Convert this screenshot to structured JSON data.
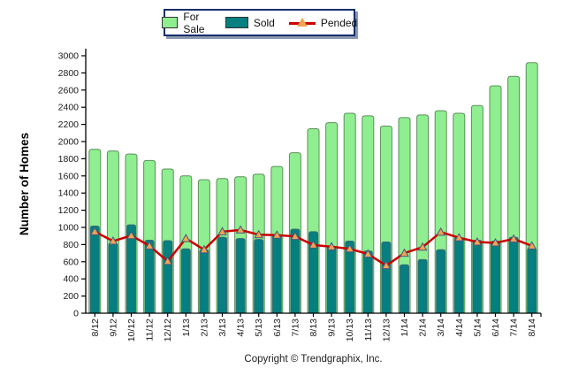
{
  "page": {
    "background": "#ffffff"
  },
  "footer": {
    "copyright": "Copyright © Trendgraphix, Inc."
  },
  "chart_data": {
    "type": "bar+line combo",
    "title": "",
    "ylabel": "Number of Homes",
    "xlabel": "",
    "ylim": [
      0,
      3000
    ],
    "ytick_step": 200,
    "grid": false,
    "legend_position": "top-center",
    "categories": [
      "8/12",
      "9/12",
      "10/12",
      "11/12",
      "12/12",
      "1/13",
      "2/13",
      "3/13",
      "4/13",
      "5/13",
      "6/13",
      "7/13",
      "8/13",
      "9/13",
      "10/13",
      "11/13",
      "12/13",
      "1/14",
      "2/14",
      "3/14",
      "4/14",
      "5/14",
      "6/14",
      "7/14",
      "8/14"
    ],
    "series": [
      {
        "name": "For Sale",
        "type": "bar",
        "color": "#8fee8f",
        "edge_color": "#5e8f5e",
        "values": [
          1910,
          1890,
          1855,
          1780,
          1680,
          1600,
          1555,
          1570,
          1590,
          1620,
          1710,
          1870,
          2150,
          2220,
          2330,
          2300,
          2180,
          2280,
          2310,
          2360,
          2330,
          2420,
          2650,
          2760,
          2920
        ]
      },
      {
        "name": "Sold",
        "type": "bar",
        "color": "#057f7f",
        "edge_color": "#3a6b75",
        "values": [
          1015,
          815,
          1030,
          850,
          845,
          750,
          740,
          885,
          870,
          860,
          915,
          980,
          950,
          780,
          840,
          725,
          830,
          565,
          625,
          740,
          880,
          850,
          840,
          885,
          755
        ]
      },
      {
        "name": "Pended",
        "type": "line",
        "color": "#cc0000",
        "marker": "triangle",
        "marker_color": "#f0a352",
        "marker_edge_color": "#47597f",
        "values": [
          950,
          840,
          905,
          785,
          605,
          870,
          740,
          950,
          970,
          915,
          910,
          895,
          795,
          775,
          750,
          690,
          555,
          700,
          770,
          945,
          880,
          830,
          820,
          865,
          785
        ]
      }
    ]
  }
}
